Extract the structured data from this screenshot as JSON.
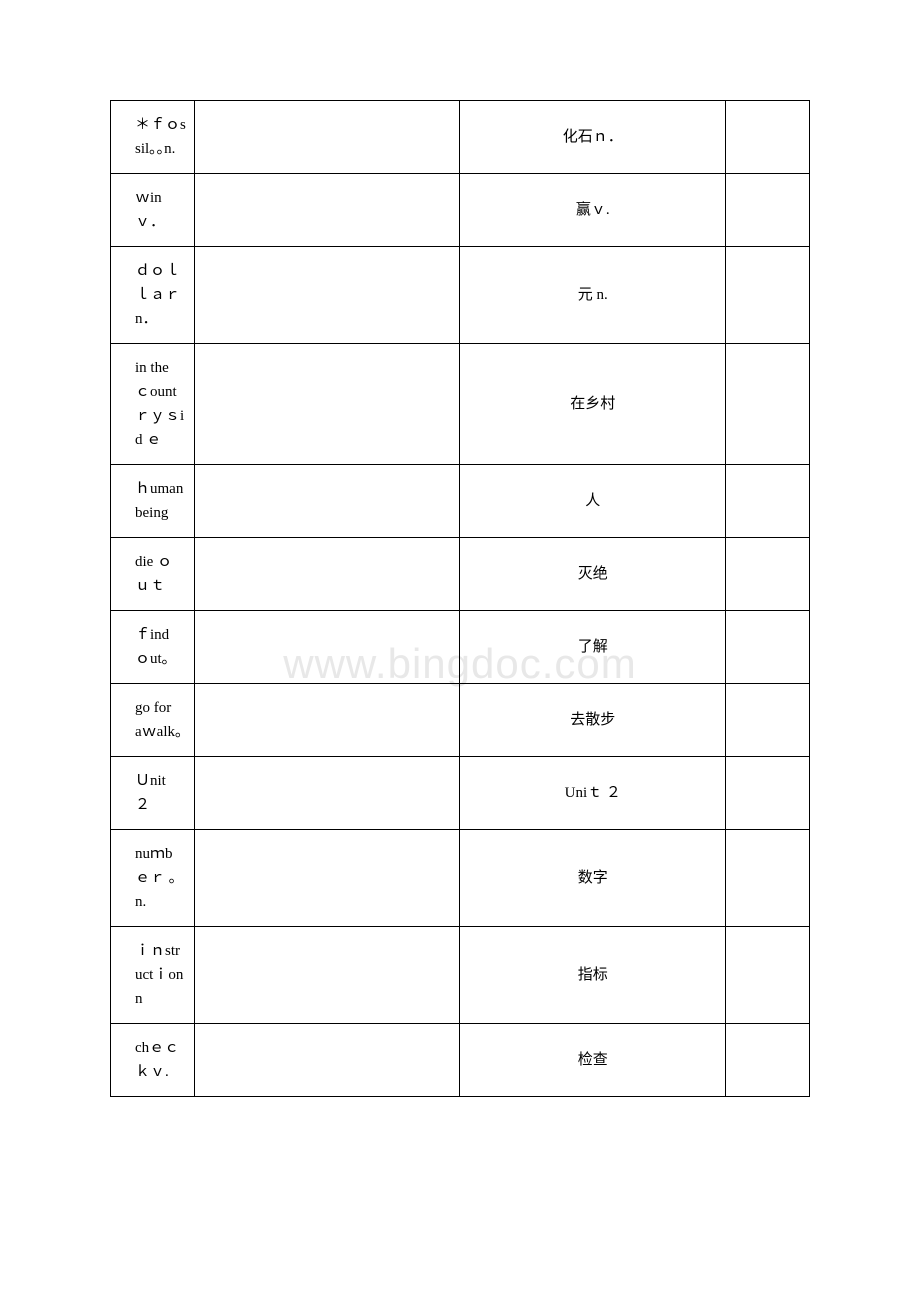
{
  "watermark": "www.bingdoc.com",
  "table": {
    "border_color": "#000000",
    "background_color": "#ffffff",
    "text_color": "#000000",
    "watermark_color": "#e8e8e8",
    "font_size": 15,
    "column_widths": [
      "12%",
      "38%",
      "38%",
      "12%"
    ],
    "rows": [
      {
        "english": "＊ｆｏssil｡｡n.",
        "chinese": "化石ｎ．"
      },
      {
        "english": "ｗin　ｖ．",
        "chinese": "赢ｖ."
      },
      {
        "english": "ｄｏｌｌａｒ　n．",
        "chinese": "元 n."
      },
      {
        "english": "in the　ｃountｒｙｓid ｅ",
        "chinese": "在乡村"
      },
      {
        "english": "ｈuman being",
        "chinese": "人"
      },
      {
        "english": "die ｏ ｕｔ",
        "chinese": "灭绝"
      },
      {
        "english": "ｆind ｏut｡",
        "chinese": "了解"
      },
      {
        "english": "go for　 aｗalk｡",
        "chinese": "去散步"
      },
      {
        "english": "Ｕnit　 ２",
        "chinese": "Uniｔ ２"
      },
      {
        "english": "nuｍbｅｒ ｡n.",
        "chinese": "数字"
      },
      {
        "english": "ｉｎstructｉon　n",
        "chinese": "指标"
      },
      {
        "english": "chｅｃｋｖ.",
        "chinese": "检查"
      }
    ]
  }
}
